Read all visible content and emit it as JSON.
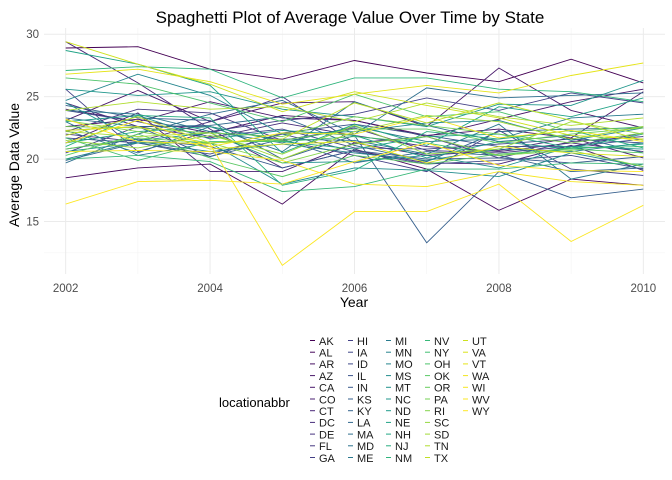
{
  "chart_data": {
    "type": "line",
    "title": "Spaghetti Plot of Average Value Over Time by State",
    "xlabel": "Year",
    "ylabel": "Average Data Value",
    "xlim": [
      2001.7,
      2010.3
    ],
    "ylim": [
      10.8,
      30.5
    ],
    "x_ticks": [
      "2002",
      "2004",
      "2006",
      "2008",
      "2010"
    ],
    "y_ticks": [
      "15",
      "20",
      "25",
      "30"
    ],
    "grid": true,
    "legend": {
      "title": "locationabbr",
      "position": "bottom",
      "columns": 5
    },
    "x": [
      2002,
      2003,
      2004,
      2005,
      2006,
      2007,
      2008,
      2009,
      2010
    ],
    "series": [
      {
        "name": "AK",
        "color": "#440154",
        "values": [
          28.9,
          29.0,
          27.2,
          26.4,
          27.9,
          26.9,
          26.2,
          28.0,
          26.1
        ]
      },
      {
        "name": "AL",
        "color": "#46085c",
        "values": [
          18.5,
          19.3,
          19.6,
          16.4,
          20.8,
          19.2,
          15.9,
          18.4,
          17.9
        ]
      },
      {
        "name": "AR",
        "color": "#471063",
        "values": [
          22.6,
          23.2,
          22.1,
          23.5,
          23.1,
          21.9,
          22.4,
          21.7,
          25.4
        ]
      },
      {
        "name": "AZ",
        "color": "#481769",
        "values": [
          24.0,
          23.0,
          24.6,
          23.3,
          23.1,
          21.8,
          23.2,
          24.6,
          25.6
        ]
      },
      {
        "name": "CA",
        "color": "#48186a",
        "values": [
          23.1,
          25.5,
          23.0,
          24.5,
          24.6,
          22.6,
          27.3,
          23.9,
          22.5
        ]
      },
      {
        "name": "CO",
        "color": "#481f70",
        "values": [
          21.3,
          23.7,
          19.0,
          19.0,
          21.3,
          20.3,
          20.7,
          21.7,
          20.1
        ]
      },
      {
        "name": "CT",
        "color": "#482576",
        "values": [
          29.4,
          26.1,
          22.4,
          19.3,
          20.7,
          19.7,
          19.6,
          21.1,
          19.1
        ]
      },
      {
        "name": "DC",
        "color": "#472c7a",
        "values": [
          24.5,
          22.6,
          21.7,
          22.9,
          21.9,
          21.0,
          20.6,
          21.3,
          20.6
        ]
      },
      {
        "name": "DE",
        "color": "#46337f",
        "values": [
          22.0,
          21.4,
          23.0,
          25.0,
          21.3,
          21.8,
          20.1,
          21.4,
          21.8
        ]
      },
      {
        "name": "FL",
        "color": "#453781",
        "values": [
          22.2,
          24.0,
          23.7,
          21.5,
          22.5,
          20.7,
          20.5,
          21.0,
          22.1
        ]
      },
      {
        "name": "GA",
        "color": "#433e85",
        "values": [
          20.5,
          22.6,
          22.6,
          21.5,
          20.3,
          19.0,
          22.3,
          19.2,
          18.7
        ]
      },
      {
        "name": "HI",
        "color": "#424086",
        "values": [
          25.6,
          20.6,
          22.2,
          23.1,
          23.6,
          24.9,
          23.9,
          25.3,
          24.5
        ]
      },
      {
        "name": "IA",
        "color": "#3f4889",
        "values": [
          23.9,
          23.0,
          21.8,
          22.4,
          20.9,
          20.8,
          21.2,
          21.6,
          21.3
        ]
      },
      {
        "name": "ID",
        "color": "#3e4a89",
        "values": [
          21.7,
          21.3,
          20.4,
          22.0,
          20.6,
          19.6,
          19.9,
          20.3,
          19.2
        ]
      },
      {
        "name": "IL",
        "color": "#3b528b",
        "values": [
          22.3,
          22.6,
          20.2,
          22.1,
          22.8,
          21.9,
          21.0,
          21.0,
          21.6
        ]
      },
      {
        "name": "IN",
        "color": "#38598c",
        "values": [
          20.8,
          21.6,
          21.0,
          19.3,
          20.7,
          20.0,
          20.1,
          19.7,
          20.2
        ]
      },
      {
        "name": "KS",
        "color": "#355f8d",
        "values": [
          24.3,
          23.3,
          23.1,
          20.0,
          21.9,
          13.3,
          19.0,
          16.9,
          17.6
        ]
      },
      {
        "name": "KY",
        "color": "#33638d",
        "values": [
          19.9,
          21.3,
          20.2,
          21.6,
          19.7,
          20.6,
          20.3,
          19.0,
          19.3
        ]
      },
      {
        "name": "LA",
        "color": "#31688e",
        "values": [
          23.3,
          22.6,
          22.7,
          23.4,
          21.1,
          19.8,
          22.2,
          22.4,
          22.5
        ]
      },
      {
        "name": "MA",
        "color": "#2e6f8e",
        "values": [
          19.7,
          22.0,
          23.6,
          24.7,
          22.0,
          25.7,
          24.9,
          25.1,
          25.3
        ]
      },
      {
        "name": "MD",
        "color": "#2c728e",
        "values": [
          22.3,
          20.5,
          22.6,
          20.6,
          24.6,
          22.7,
          21.4,
          21.9,
          20.5
        ]
      },
      {
        "name": "ME",
        "color": "#2a788e",
        "values": [
          23.0,
          20.3,
          21.3,
          21.6,
          21.5,
          20.4,
          22.8,
          18.4,
          19.6
        ]
      },
      {
        "name": "MI",
        "color": "#297b8e",
        "values": [
          23.9,
          23.6,
          22.2,
          21.3,
          22.6,
          21.4,
          21.6,
          23.3,
          23.6
        ]
      },
      {
        "name": "MN",
        "color": "#26828e",
        "values": [
          20.0,
          21.4,
          20.6,
          21.2,
          20.5,
          19.9,
          20.8,
          20.6,
          21.3
        ]
      },
      {
        "name": "MO",
        "color": "#24868e",
        "values": [
          24.7,
          26.8,
          25.1,
          22.0,
          22.2,
          22.9,
          23.1,
          21.5,
          22.5
        ]
      },
      {
        "name": "MS",
        "color": "#228c8d",
        "values": [
          20.6,
          21.3,
          21.3,
          18.0,
          19.3,
          19.1,
          18.6,
          20.5,
          19.4
        ]
      },
      {
        "name": "MT",
        "color": "#20928c",
        "values": [
          24.5,
          21.5,
          22.1,
          19.7,
          19.8,
          20.3,
          19.3,
          21.0,
          20.8
        ]
      },
      {
        "name": "NC",
        "color": "#1f968b",
        "values": [
          25.6,
          25.1,
          25.4,
          24.0,
          23.4,
          22.6,
          24.4,
          24.3,
          26.3
        ]
      },
      {
        "name": "ND",
        "color": "#1e9b8a",
        "values": [
          23.0,
          23.5,
          21.6,
          22.3,
          21.9,
          20.1,
          21.4,
          20.8,
          21.2
        ]
      },
      {
        "name": "NE",
        "color": "#20a386",
        "values": [
          28.7,
          27.6,
          25.9,
          20.5,
          22.8,
          21.1,
          24.2,
          23.4,
          24.9
        ]
      },
      {
        "name": "NH",
        "color": "#22a785",
        "values": [
          21.3,
          22.2,
          22.6,
          21.4,
          20.8,
          21.8,
          22.0,
          20.9,
          22.0
        ]
      },
      {
        "name": "NJ",
        "color": "#28ae80",
        "values": [
          21.0,
          23.5,
          23.3,
          17.9,
          19.1,
          22.2,
          21.6,
          22.3,
          20.9
        ]
      },
      {
        "name": "NM",
        "color": "#2fb47c",
        "values": [
          27.1,
          27.4,
          27.2,
          24.9,
          26.5,
          26.5,
          25.6,
          25.4,
          24.6
        ]
      },
      {
        "name": "NV",
        "color": "#37b878",
        "values": [
          20.0,
          20.3,
          19.8,
          17.4,
          17.8,
          19.2,
          19.2,
          19.7,
          19.6
        ]
      },
      {
        "name": "NY",
        "color": "#42be71",
        "values": [
          21.7,
          19.9,
          21.4,
          21.4,
          21.8,
          21.3,
          20.3,
          20.9,
          21.0
        ]
      },
      {
        "name": "OH",
        "color": "#4ec36b",
        "values": [
          26.5,
          26.0,
          24.5,
          23.0,
          25.2,
          23.4,
          23.8,
          22.2,
          22.6
        ]
      },
      {
        "name": "OK",
        "color": "#5ac864",
        "values": [
          20.3,
          22.0,
          20.1,
          18.6,
          20.3,
          19.6,
          20.4,
          20.8,
          20.5
        ]
      },
      {
        "name": "OR",
        "color": "#67cc5c",
        "values": [
          20.8,
          21.7,
          21.3,
          21.5,
          22.4,
          22.4,
          21.3,
          22.0,
          22.5
        ]
      },
      {
        "name": "PA",
        "color": "#76d054",
        "values": [
          22.6,
          22.5,
          22.1,
          21.8,
          23.4,
          22.7,
          22.0,
          21.3,
          22.1
        ]
      },
      {
        "name": "RI",
        "color": "#84d44b",
        "values": [
          23.1,
          22.2,
          21.3,
          19.7,
          21.2,
          21.8,
          20.3,
          20.7,
          19.4
        ]
      },
      {
        "name": "SC",
        "color": "#95d840",
        "values": [
          21.5,
          20.9,
          21.9,
          20.4,
          22.7,
          20.4,
          20.8,
          23.0,
          22.0
        ]
      },
      {
        "name": "SD",
        "color": "#a2da37",
        "values": [
          22.2,
          21.8,
          22.1,
          20.0,
          22.2,
          23.5,
          23.0,
          21.6,
          22.6
        ]
      },
      {
        "name": "TN",
        "color": "#b0dd2f",
        "values": [
          23.9,
          24.6,
          24.0,
          24.2,
          23.0,
          24.5,
          23.4,
          22.7,
          23.3
        ]
      },
      {
        "name": "TX",
        "color": "#bfdf25",
        "values": [
          21.9,
          23.4,
          21.3,
          21.6,
          24.5,
          22.9,
          24.5,
          23.1,
          21.5
        ]
      },
      {
        "name": "UT",
        "color": "#cde11d",
        "values": [
          29.4,
          27.6,
          26.0,
          23.8,
          25.4,
          24.3,
          23.3,
          21.9,
          21.6
        ]
      },
      {
        "name": "VA",
        "color": "#dae319",
        "values": [
          22.3,
          22.6,
          20.8,
          21.2,
          21.4,
          19.7,
          21.0,
          20.5,
          20.2
        ]
      },
      {
        "name": "VT",
        "color": "#e5e419",
        "values": [
          26.8,
          27.2,
          26.2,
          24.4,
          25.2,
          25.9,
          25.3,
          26.7,
          27.7
        ]
      },
      {
        "name": "WA",
        "color": "#f1e51d",
        "values": [
          21.3,
          23.1,
          21.0,
          22.1,
          22.0,
          23.4,
          21.7,
          22.3,
          21.4
        ]
      },
      {
        "name": "WI",
        "color": "#f6e620",
        "values": [
          20.6,
          20.7,
          20.6,
          19.9,
          18.0,
          17.8,
          19.0,
          18.2,
          17.9
        ]
      },
      {
        "name": "WV",
        "color": "#fbe723",
        "values": [
          23.2,
          21.4,
          21.2,
          11.5,
          15.8,
          15.8,
          18.0,
          13.4,
          16.3
        ]
      },
      {
        "name": "WY",
        "color": "#fde725",
        "values": [
          16.4,
          18.2,
          18.3,
          18.0,
          19.8,
          21.3,
          19.5,
          19.1,
          19.0
        ]
      }
    ]
  }
}
